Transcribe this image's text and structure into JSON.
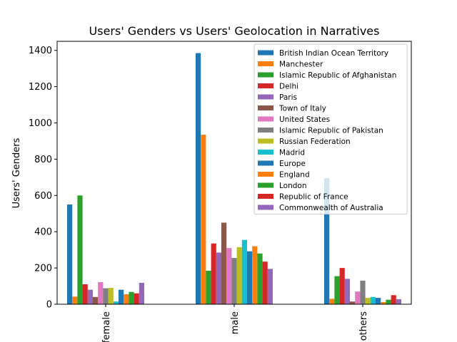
{
  "chart_data": {
    "type": "bar",
    "title": "Users' Genders vs Users' Geolocation in Narratives",
    "xlabel": "",
    "ylabel": "Users' Genders",
    "ylim": [
      0,
      1450
    ],
    "yticks": [
      0,
      200,
      400,
      600,
      800,
      1000,
      1200,
      1400
    ],
    "categories": [
      "female",
      "male",
      "others"
    ],
    "legend_position": "top-right",
    "grid": false,
    "series": [
      {
        "name": "British Indian Ocean Territory",
        "color": "#1f77b4",
        "values": [
          550,
          1385,
          695
        ]
      },
      {
        "name": "Manchester",
        "color": "#ff7f0e",
        "values": [
          42,
          935,
          30
        ]
      },
      {
        "name": "Islamic Republic of Afghanistan",
        "color": "#2ca02c",
        "values": [
          600,
          185,
          155
        ]
      },
      {
        "name": "Delhi",
        "color": "#d62728",
        "values": [
          110,
          335,
          200
        ]
      },
      {
        "name": "Paris",
        "color": "#9467bd",
        "values": [
          80,
          285,
          140
        ]
      },
      {
        "name": "Town of Italy",
        "color": "#8c564b",
        "values": [
          40,
          450,
          15
        ]
      },
      {
        "name": "United States",
        "color": "#e377c2",
        "values": [
          122,
          310,
          70
        ]
      },
      {
        "name": "Islamic Republic of Pakistan",
        "color": "#7f7f7f",
        "values": [
          88,
          255,
          130
        ]
      },
      {
        "name": "Russian Federation",
        "color": "#bcbd22",
        "values": [
          90,
          315,
          35
        ]
      },
      {
        "name": "Madrid",
        "color": "#17becf",
        "values": [
          15,
          355,
          40
        ]
      },
      {
        "name": "Europe",
        "color": "#1f77b4",
        "values": [
          80,
          292,
          35
        ]
      },
      {
        "name": "England",
        "color": "#ff7f0e",
        "values": [
          55,
          320,
          12
        ]
      },
      {
        "name": "London",
        "color": "#2ca02c",
        "values": [
          68,
          280,
          25
        ]
      },
      {
        "name": "Republic of France",
        "color": "#d62728",
        "values": [
          60,
          235,
          50
        ]
      },
      {
        "name": "Commonwealth of Australia",
        "color": "#9467bd",
        "values": [
          118,
          195,
          28
        ]
      }
    ]
  }
}
